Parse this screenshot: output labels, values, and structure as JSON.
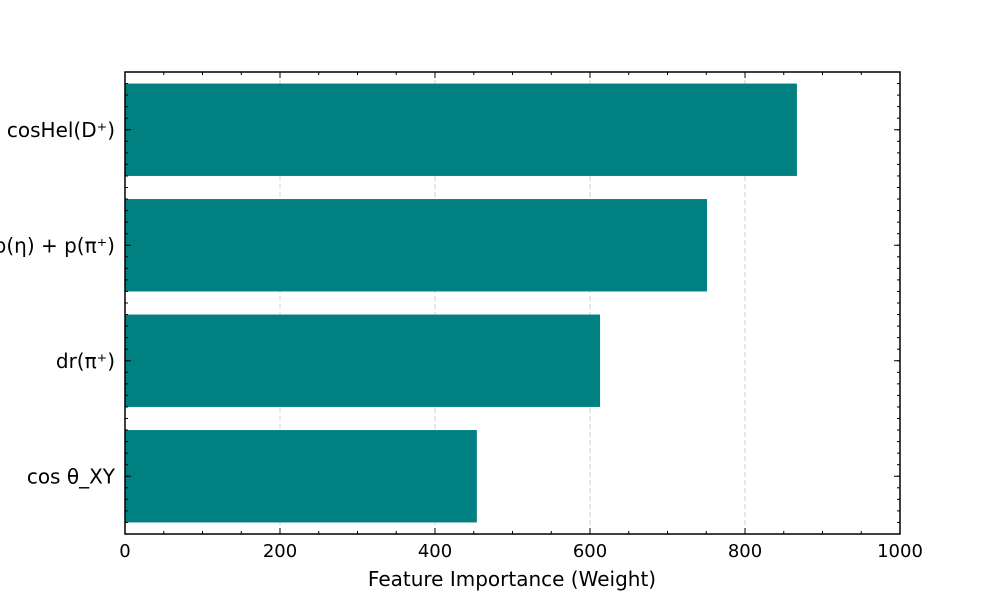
{
  "chart_data": {
    "type": "bar",
    "orientation": "horizontal",
    "categories": [
      "cosHel(D⁺)",
      "p(η) + p(π⁺)",
      "dr(π⁺)",
      "cos θ_XY"
    ],
    "values": [
      867,
      751,
      613,
      454
    ],
    "title": "",
    "xlabel": "Feature Importance (Weight)",
    "ylabel": "",
    "xlim": [
      0,
      1000
    ],
    "xticks": [
      0,
      200,
      400,
      600,
      800,
      1000
    ],
    "grid": "x-axis dashed",
    "legend": "none",
    "bar_color": "#008080"
  }
}
